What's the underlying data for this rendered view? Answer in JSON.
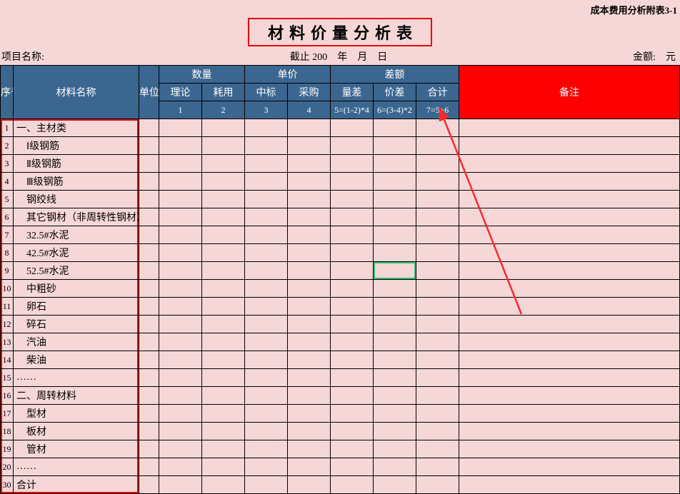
{
  "top_right": "成本费用分析附表3-1",
  "title": "材料价量分析表",
  "meta": {
    "left": "项目名称:",
    "center": "截止 200　年　月　日",
    "right": "金额:　元"
  },
  "headers": {
    "seq": "序号",
    "name": "材料名称",
    "unit": "单位",
    "qty": "数量",
    "qty_sub": [
      "理论",
      "耗用"
    ],
    "price": "单价",
    "price_sub": [
      "中标",
      "采购"
    ],
    "diff": "差额",
    "diff_sub": [
      "量差",
      "价差",
      "合计"
    ],
    "remark": "备注",
    "formula": [
      "1",
      "2",
      "3",
      "4",
      "5=(1-2)*4",
      "6=(3-4)*2",
      "7=5+6"
    ]
  },
  "rows": [
    {
      "n": "1",
      "name": "一、主材类"
    },
    {
      "n": "2",
      "name": "　Ⅰ级钢筋"
    },
    {
      "n": "3",
      "name": "　Ⅱ级钢筋"
    },
    {
      "n": "4",
      "name": "　Ⅲ级钢筋"
    },
    {
      "n": "5",
      "name": "　钢绞线"
    },
    {
      "n": "6",
      "name": "　其它钢材（非周转性钢材）"
    },
    {
      "n": "7",
      "name": "　32.5#水泥"
    },
    {
      "n": "8",
      "name": "　42.5#水泥"
    },
    {
      "n": "9",
      "name": "　52.5#水泥"
    },
    {
      "n": "10",
      "name": "　中粗砂"
    },
    {
      "n": "11",
      "name": "　卵石"
    },
    {
      "n": "12",
      "name": "　碎石"
    },
    {
      "n": "13",
      "name": "　汽油"
    },
    {
      "n": "14",
      "name": "　柴油"
    },
    {
      "n": "15",
      "name": "……"
    },
    {
      "n": "16",
      "name": "二、周转材料"
    },
    {
      "n": "17",
      "name": "　型材"
    },
    {
      "n": "18",
      "name": "　板材"
    },
    {
      "n": "19",
      "name": "　管材"
    },
    {
      "n": "20",
      "name": "……"
    },
    {
      "n": "30",
      "name": "合计"
    }
  ],
  "style": {
    "bg": "#f5d7d7",
    "header_bg": "#3b6690",
    "remark_bg": "#ff0000",
    "highlight_red": "#e60000",
    "sel_green": "#2fbf71",
    "arrow_color": "#ff2a2a",
    "selected_cell": {
      "row_index": 8,
      "col_index": 5
    }
  }
}
